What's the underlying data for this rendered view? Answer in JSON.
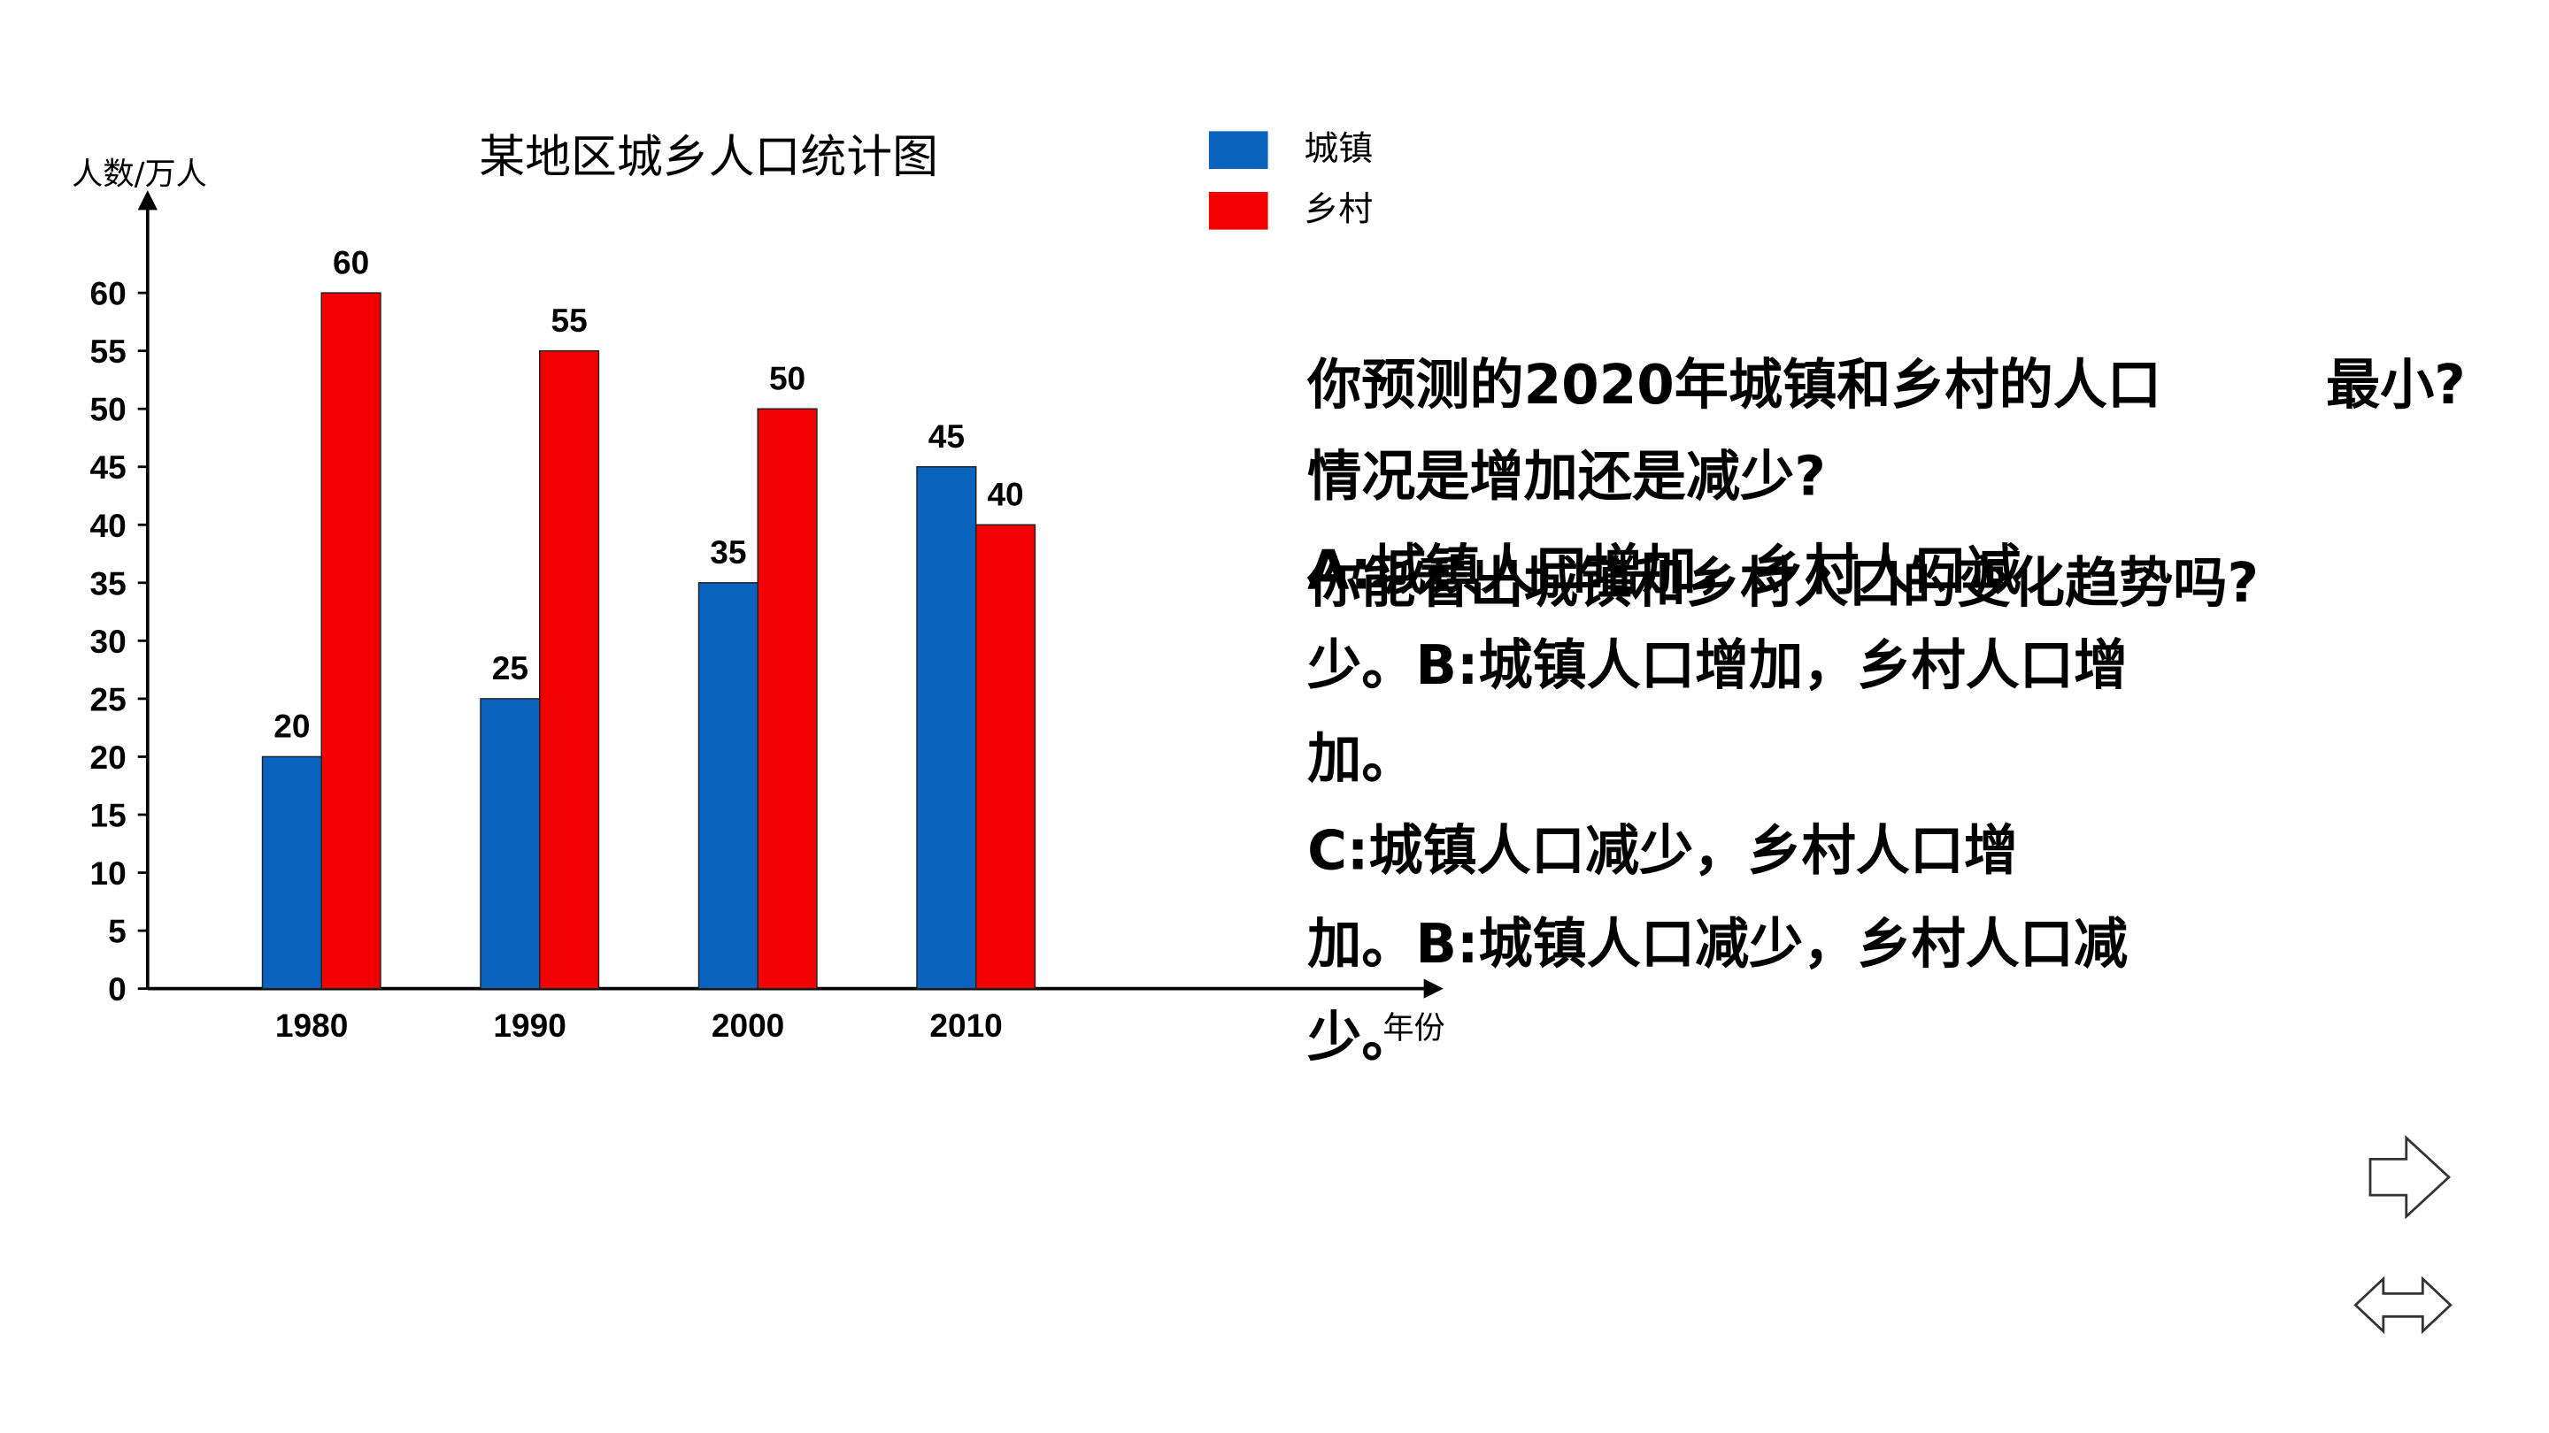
{
  "chart_data": {
    "type": "bar",
    "title": "某地区城乡人口统计图",
    "y_label": "人数/万人",
    "x_label": "年份",
    "categories": [
      "1980",
      "1990",
      "2000",
      "2010"
    ],
    "series": [
      {
        "name": "城镇",
        "color": "#0a64be",
        "values": [
          20,
          25,
          35,
          45
        ]
      },
      {
        "name": "乡村",
        "color": "#f20000",
        "values": [
          60,
          55,
          50,
          40
        ]
      }
    ],
    "ylim": [
      0,
      68
    ],
    "yticks": [
      0,
      5,
      10,
      15,
      20,
      25,
      30,
      35,
      40,
      45,
      50,
      55,
      60
    ],
    "grid": false,
    "legend": "top-right"
  },
  "slide_text": {
    "question_1": [
      "你预测的2020年城镇和乡村的人口",
      "情况是增加还是减少?"
    ],
    "fragment": "最小?",
    "question_2": "你能看出城镇和乡村人口的变化趋势吗?",
    "options": [
      "A:城镇人口增加，乡村人口减",
      "少。B:城镇人口增加，乡村人口增",
      "加。",
      "C:城镇人口减少，乡村人口增",
      "加。B:城镇人口减少，乡村人口减",
      "少。"
    ]
  }
}
